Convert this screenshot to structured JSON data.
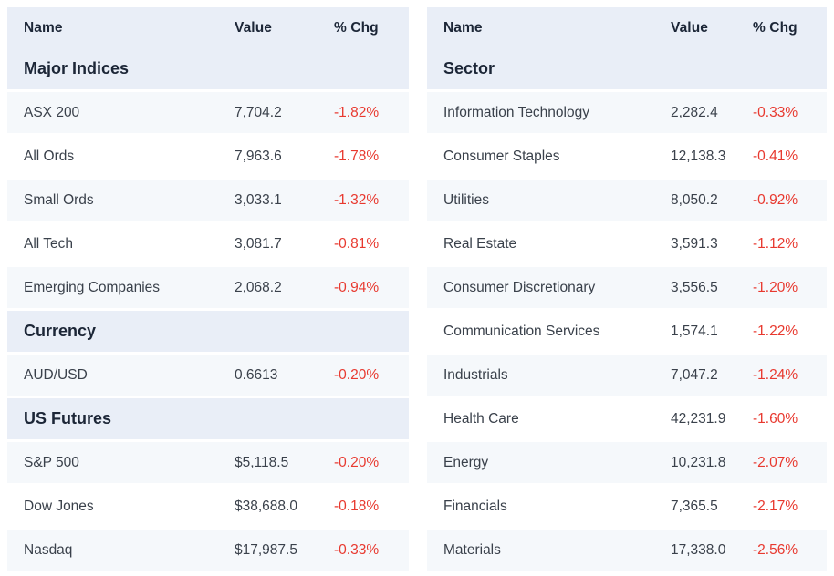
{
  "colors": {
    "header_bg": "#e9eef7",
    "stripe_bg": "#f5f8fb",
    "heading_text": "#1c2637",
    "body_text": "#3a414b",
    "negative": "#e8392f"
  },
  "tables": [
    {
      "columns": [
        "Name",
        "Value",
        "% Chg"
      ],
      "sections": [
        {
          "title": "Major Indices",
          "rows": [
            {
              "name": "ASX 200",
              "value": "7,704.2",
              "chg": "-1.82%"
            },
            {
              "name": "All Ords",
              "value": "7,963.6",
              "chg": "-1.78%"
            },
            {
              "name": "Small Ords",
              "value": "3,033.1",
              "chg": "-1.32%"
            },
            {
              "name": "All Tech",
              "value": "3,081.7",
              "chg": "-0.81%"
            },
            {
              "name": "Emerging Companies",
              "value": "2,068.2",
              "chg": "-0.94%"
            }
          ]
        },
        {
          "title": "Currency",
          "rows": [
            {
              "name": "AUD/USD",
              "value": "0.6613",
              "chg": "-0.20%"
            }
          ]
        },
        {
          "title": "US Futures",
          "rows": [
            {
              "name": "S&P 500",
              "value": "$5,118.5",
              "chg": "-0.20%"
            },
            {
              "name": "Dow Jones",
              "value": "$38,688.0",
              "chg": "-0.18%"
            },
            {
              "name": "Nasdaq",
              "value": "$17,987.5",
              "chg": "-0.33%"
            }
          ]
        }
      ]
    },
    {
      "columns": [
        "Name",
        "Value",
        "% Chg"
      ],
      "sections": [
        {
          "title": "Sector",
          "rows": [
            {
              "name": "Information Technology",
              "value": "2,282.4",
              "chg": "-0.33%"
            },
            {
              "name": "Consumer Staples",
              "value": "12,138.3",
              "chg": "-0.41%"
            },
            {
              "name": "Utilities",
              "value": "8,050.2",
              "chg": "-0.92%"
            },
            {
              "name": "Real Estate",
              "value": "3,591.3",
              "chg": "-1.12%"
            },
            {
              "name": "Consumer Discretionary",
              "value": "3,556.5",
              "chg": "-1.20%"
            },
            {
              "name": "Communication Services",
              "value": "1,574.1",
              "chg": "-1.22%"
            },
            {
              "name": "Industrials",
              "value": "7,047.2",
              "chg": "-1.24%"
            },
            {
              "name": "Health Care",
              "value": "42,231.9",
              "chg": "-1.60%"
            },
            {
              "name": "Energy",
              "value": "10,231.8",
              "chg": "-2.07%"
            },
            {
              "name": "Financials",
              "value": "7,365.5",
              "chg": "-2.17%"
            },
            {
              "name": "Materials",
              "value": "17,338.0",
              "chg": "-2.56%"
            }
          ]
        }
      ]
    }
  ]
}
